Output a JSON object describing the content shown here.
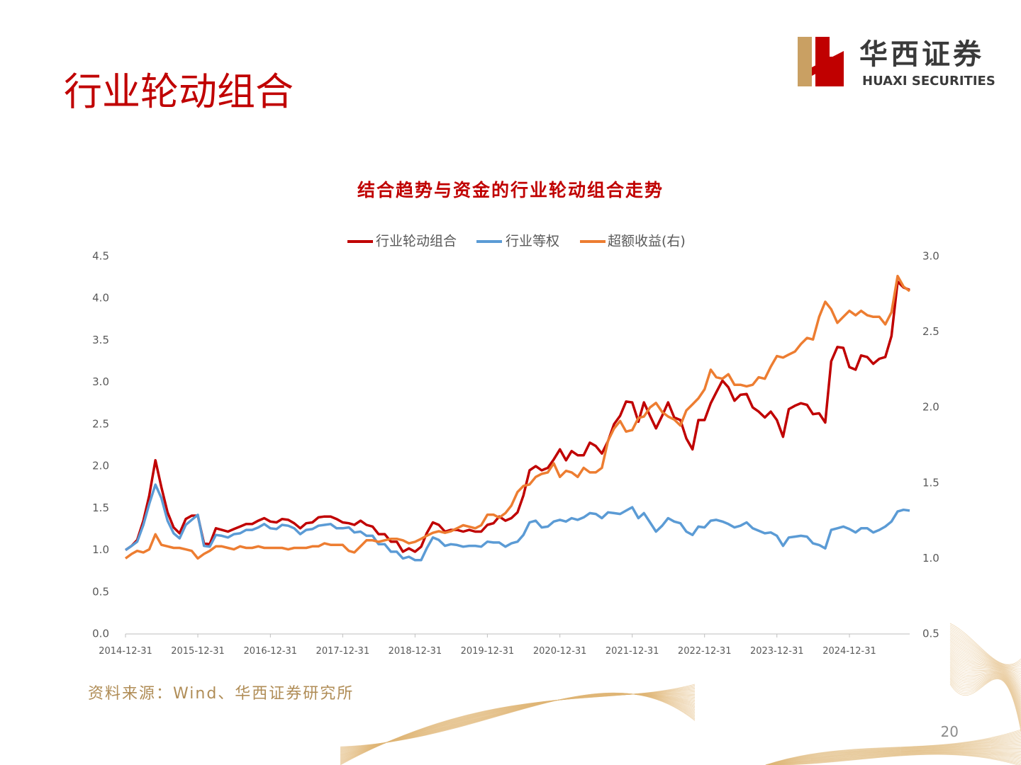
{
  "slide_title": "行业轮动组合",
  "logo": {
    "name": "华西证券",
    "english": "HUAXI SECURITIES"
  },
  "source": "资料来源：Wind、华西证券研究所",
  "page_number": "20",
  "chart_data": {
    "type": "line",
    "title": "结合趋势与资金的行业轮动组合走势",
    "x": [
      "2014-12-31",
      "2015-01-31",
      "2015-02-28",
      "2015-03-31",
      "2015-04-30",
      "2015-05-31",
      "2015-06-30",
      "2015-07-31",
      "2015-08-31",
      "2015-09-30",
      "2015-10-31",
      "2015-11-30",
      "2015-12-31",
      "2016-01-31",
      "2016-02-29",
      "2016-03-31",
      "2016-04-30",
      "2016-05-31",
      "2016-06-30",
      "2016-07-31",
      "2016-08-31",
      "2016-09-30",
      "2016-10-31",
      "2016-11-30",
      "2016-12-31",
      "2017-01-31",
      "2017-02-28",
      "2017-03-31",
      "2017-04-30",
      "2017-05-31",
      "2017-06-30",
      "2017-07-31",
      "2017-08-31",
      "2017-09-30",
      "2017-10-31",
      "2017-11-30",
      "2017-12-31",
      "2018-01-31",
      "2018-02-28",
      "2018-03-31",
      "2018-04-30",
      "2018-05-31",
      "2018-06-30",
      "2018-07-31",
      "2018-08-31",
      "2018-09-30",
      "2018-10-31",
      "2018-11-30",
      "2018-12-31",
      "2019-01-31",
      "2019-02-28",
      "2019-03-31",
      "2019-04-30",
      "2019-05-31",
      "2019-06-30",
      "2019-07-31",
      "2019-08-31",
      "2019-09-30",
      "2019-10-31",
      "2019-11-30",
      "2019-12-31",
      "2020-01-31",
      "2020-02-29",
      "2020-03-31",
      "2020-04-30",
      "2020-05-31",
      "2020-06-30",
      "2020-07-31",
      "2020-08-31",
      "2020-09-30",
      "2020-10-31",
      "2020-11-30",
      "2020-12-31",
      "2021-01-31",
      "2021-02-28",
      "2021-03-31",
      "2021-04-30",
      "2021-05-31",
      "2021-06-30",
      "2021-07-31",
      "2021-08-31",
      "2021-09-30",
      "2021-10-31",
      "2021-11-30",
      "2021-12-31",
      "2022-01-31",
      "2022-02-28",
      "2022-03-31",
      "2022-04-30",
      "2022-05-31",
      "2022-06-30",
      "2022-07-31",
      "2022-08-31",
      "2022-09-30",
      "2022-10-31",
      "2022-11-30",
      "2022-12-31",
      "2023-01-31",
      "2023-02-28",
      "2023-03-31",
      "2023-04-30",
      "2023-05-31",
      "2023-06-30",
      "2023-07-31",
      "2023-08-31",
      "2023-09-30",
      "2023-10-31",
      "2023-11-30",
      "2023-12-31",
      "2024-01-31",
      "2024-02-29",
      "2024-03-31",
      "2024-04-30",
      "2024-05-31",
      "2024-06-30",
      "2024-07-31",
      "2024-08-31",
      "2024-09-30",
      "2024-10-31",
      "2024-11-30",
      "2024-12-31",
      "2025-01-31",
      "2025-02-28",
      "2025-03-31",
      "2025-04-30",
      "2025-05-31",
      "2025-06-30",
      "2025-07-31",
      "2025-08-31",
      "2025-09-30",
      "2025-10-31"
    ],
    "series": [
      {
        "name": "行业轮动组合",
        "color": "#c00000",
        "values": [
          1.0,
          1.05,
          1.12,
          1.35,
          1.65,
          2.07,
          1.75,
          1.45,
          1.27,
          1.2,
          1.37,
          1.41,
          1.41,
          1.08,
          1.07,
          1.26,
          1.24,
          1.22,
          1.25,
          1.28,
          1.31,
          1.31,
          1.35,
          1.38,
          1.34,
          1.33,
          1.37,
          1.36,
          1.32,
          1.26,
          1.32,
          1.33,
          1.39,
          1.4,
          1.4,
          1.37,
          1.33,
          1.32,
          1.3,
          1.35,
          1.3,
          1.28,
          1.19,
          1.19,
          1.1,
          1.1,
          0.98,
          1.02,
          0.98,
          1.04,
          1.2,
          1.33,
          1.3,
          1.22,
          1.24,
          1.24,
          1.22,
          1.24,
          1.22,
          1.22,
          1.3,
          1.32,
          1.4,
          1.35,
          1.38,
          1.45,
          1.65,
          1.95,
          2.0,
          1.95,
          1.98,
          2.08,
          2.2,
          2.07,
          2.18,
          2.13,
          2.13,
          2.28,
          2.24,
          2.15,
          2.3,
          2.5,
          2.6,
          2.77,
          2.76,
          2.53,
          2.76,
          2.6,
          2.45,
          2.6,
          2.76,
          2.58,
          2.55,
          2.33,
          2.2,
          2.55,
          2.55,
          2.75,
          2.88,
          3.02,
          2.94,
          2.78,
          2.85,
          2.86,
          2.7,
          2.65,
          2.58,
          2.65,
          2.55,
          2.35,
          2.68,
          2.72,
          2.75,
          2.73,
          2.62,
          2.63,
          2.52,
          3.25,
          3.42,
          3.41,
          3.18,
          3.15,
          3.32,
          3.3,
          3.22,
          3.28,
          3.3,
          3.55,
          4.2,
          4.13,
          4.1
        ]
      },
      {
        "name": "行业等权",
        "color": "#5b9bd5",
        "values": [
          1.0,
          1.05,
          1.1,
          1.3,
          1.55,
          1.78,
          1.62,
          1.35,
          1.2,
          1.14,
          1.3,
          1.36,
          1.42,
          1.05,
          1.04,
          1.18,
          1.17,
          1.15,
          1.19,
          1.2,
          1.24,
          1.24,
          1.27,
          1.31,
          1.26,
          1.25,
          1.3,
          1.29,
          1.26,
          1.19,
          1.24,
          1.25,
          1.29,
          1.3,
          1.31,
          1.26,
          1.26,
          1.27,
          1.21,
          1.22,
          1.17,
          1.17,
          1.07,
          1.07,
          0.98,
          0.98,
          0.9,
          0.92,
          0.88,
          0.88,
          1.02,
          1.15,
          1.12,
          1.05,
          1.07,
          1.06,
          1.04,
          1.05,
          1.05,
          1.04,
          1.1,
          1.09,
          1.09,
          1.04,
          1.08,
          1.1,
          1.18,
          1.33,
          1.35,
          1.27,
          1.28,
          1.34,
          1.36,
          1.34,
          1.38,
          1.36,
          1.39,
          1.44,
          1.43,
          1.38,
          1.45,
          1.44,
          1.43,
          1.47,
          1.51,
          1.38,
          1.44,
          1.33,
          1.22,
          1.29,
          1.38,
          1.34,
          1.32,
          1.22,
          1.18,
          1.28,
          1.27,
          1.35,
          1.36,
          1.34,
          1.31,
          1.27,
          1.29,
          1.33,
          1.26,
          1.23,
          1.2,
          1.21,
          1.17,
          1.05,
          1.15,
          1.16,
          1.17,
          1.16,
          1.08,
          1.06,
          1.02,
          1.24,
          1.26,
          1.28,
          1.25,
          1.21,
          1.26,
          1.26,
          1.21,
          1.24,
          1.28,
          1.34,
          1.46,
          1.48,
          1.47
        ]
      },
      {
        "name": "超额收益(右)",
        "color": "#ed7d31",
        "axis": "y2",
        "values": [
          1.0,
          1.03,
          1.05,
          1.04,
          1.06,
          1.16,
          1.09,
          1.08,
          1.07,
          1.07,
          1.06,
          1.05,
          1.0,
          1.03,
          1.05,
          1.08,
          1.08,
          1.07,
          1.06,
          1.08,
          1.07,
          1.07,
          1.08,
          1.07,
          1.07,
          1.07,
          1.07,
          1.06,
          1.07,
          1.07,
          1.07,
          1.08,
          1.08,
          1.1,
          1.09,
          1.09,
          1.09,
          1.05,
          1.04,
          1.08,
          1.12,
          1.12,
          1.11,
          1.12,
          1.13,
          1.13,
          1.12,
          1.1,
          1.11,
          1.13,
          1.15,
          1.17,
          1.18,
          1.17,
          1.18,
          1.2,
          1.22,
          1.21,
          1.2,
          1.22,
          1.29,
          1.29,
          1.27,
          1.3,
          1.35,
          1.44,
          1.48,
          1.49,
          1.54,
          1.56,
          1.57,
          1.63,
          1.54,
          1.58,
          1.57,
          1.54,
          1.6,
          1.57,
          1.57,
          1.6,
          1.78,
          1.86,
          1.91,
          1.84,
          1.85,
          1.93,
          1.94,
          2.0,
          2.03,
          1.97,
          1.94,
          1.92,
          1.88,
          1.98,
          2.02,
          2.06,
          2.12,
          2.25,
          2.2,
          2.19,
          2.22,
          2.15,
          2.15,
          2.14,
          2.15,
          2.2,
          2.19,
          2.27,
          2.34,
          2.33,
          2.35,
          2.37,
          2.42,
          2.46,
          2.45,
          2.6,
          2.7,
          2.65,
          2.56,
          2.6,
          2.64,
          2.61,
          2.64,
          2.61,
          2.6,
          2.6,
          2.55,
          2.63,
          2.87,
          2.8,
          2.77
        ]
      }
    ],
    "xlim": [
      "2014-12-31",
      "2025-10-31"
    ],
    "xticks": [
      "2014-12-31",
      "2015-12-31",
      "2016-12-31",
      "2017-12-31",
      "2018-12-31",
      "2019-12-31",
      "2020-12-31",
      "2021-12-31",
      "2022-12-31",
      "2023-12-31",
      "2024-12-31"
    ],
    "ylim": [
      0,
      4.5
    ],
    "yticks": [
      {
        "value": 0,
        "label": "0.0"
      },
      0.5,
      {
        "value": 1,
        "label": "1.0"
      },
      1.5,
      {
        "value": 2,
        "label": "2.0"
      },
      2.5,
      {
        "value": 3,
        "label": "3.0"
      },
      3.5,
      {
        "value": 4,
        "label": "4.0"
      },
      4.5
    ],
    "y2lim": [
      0.5,
      3.0
    ],
    "y2ticks": [
      0.5,
      {
        "value": 1,
        "label": "1.0"
      },
      1.5,
      {
        "value": 2,
        "label": "2.0"
      },
      2.5,
      {
        "value": 3,
        "label": "3.0"
      }
    ],
    "grid": false,
    "legend": "top"
  }
}
